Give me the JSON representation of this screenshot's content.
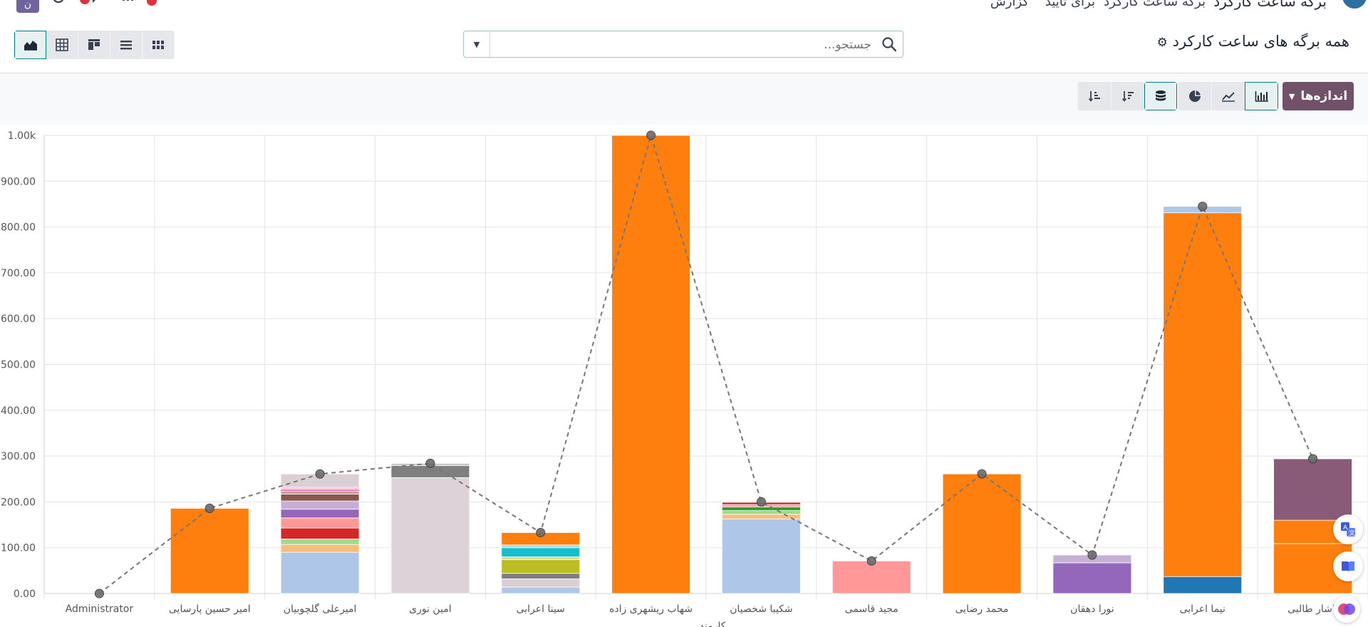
{
  "topbar": {
    "app_title": "برگه ساعت کارکرد",
    "menu": [
      "برگه ساعت کارکرد",
      "برای تایید",
      "گزارش"
    ],
    "avatar_letter": "ن"
  },
  "control_panel": {
    "page_title": "همه برگه های ساعت کارکرد",
    "search_placeholder": "جستجو...",
    "views": [
      "kanban-view-icon",
      "list-view-icon",
      "pivot-layout-icon",
      "table-view-icon",
      "graph-view-icon"
    ],
    "active_view": "graph-view-icon"
  },
  "graph_toolbar": {
    "measures_label": "اندازه‌ها",
    "chart_types": [
      "bar-chart-icon",
      "line-chart-icon",
      "pie-chart-icon"
    ],
    "active_chart_type": "bar-chart-icon",
    "stacked_active": true,
    "sort_buttons": [
      "sort-descending-icon",
      "sort-ascending-icon"
    ]
  },
  "accent_colors": {
    "primary": "#71506a",
    "teal": "#017e84"
  },
  "chart_data": {
    "type": "bar",
    "stacked": true,
    "xlabel": "کارمند",
    "ylim": [
      0,
      1000
    ],
    "yticks": [
      "0.00",
      "100.00",
      "200.00",
      "300.00",
      "400.00",
      "500.00",
      "600.00",
      "700.00",
      "800.00",
      "900.00",
      "1.00k"
    ],
    "categories": [
      "Administrator",
      "امیر حسین پارسایی",
      "امیرعلی گلچوبیان",
      "امین نوری",
      "سینا اعرابی",
      "شهاب ریشهری زاده",
      "شکیبا شخصیان",
      "مجید قاسمی",
      "محمد رضایی",
      "نورا دهقان",
      "نیما اعرابی",
      "یاشار طالبی"
    ],
    "stacks": [
      [],
      [
        {
          "value": 186,
          "color": "#ff7f0e"
        }
      ],
      [
        {
          "value": 90,
          "color": "#aec7e8"
        },
        {
          "value": 17,
          "color": "#ffbb78"
        },
        {
          "value": 12,
          "color": "#98df8a"
        },
        {
          "value": 24,
          "color": "#d62728"
        },
        {
          "value": 22,
          "color": "#ff9896"
        },
        {
          "value": 19,
          "color": "#9467bd"
        },
        {
          "value": 18,
          "color": "#c5b0d5"
        },
        {
          "value": 15,
          "color": "#8c564b"
        },
        {
          "value": 6,
          "color": "#c49c94"
        },
        {
          "value": 5,
          "color": "#e377c2"
        },
        {
          "value": 4,
          "color": "#f7b6d2"
        },
        {
          "value": 29,
          "color": "#dbcfd6"
        }
      ],
      [
        {
          "value": 253,
          "color": "#ded2d9"
        },
        {
          "value": 26,
          "color": "#7f7f7f"
        },
        {
          "value": 5,
          "color": "#c7c7c7"
        }
      ],
      [
        {
          "value": 14,
          "color": "#aec7e8"
        },
        {
          "value": 18,
          "color": "#dbcfd6"
        },
        {
          "value": 12,
          "color": "#7f7f7f"
        },
        {
          "value": 30,
          "color": "#bcbd22"
        },
        {
          "value": 6,
          "color": "#dbdb8d"
        },
        {
          "value": 20,
          "color": "#17becf"
        },
        {
          "value": 6,
          "color": "#9edae5"
        },
        {
          "value": 27,
          "color": "#ff7f0e"
        }
      ],
      [
        {
          "value": 1000,
          "color": "#ff7f0e"
        }
      ],
      [
        {
          "value": 163,
          "color": "#aec7e8"
        },
        {
          "value": 10,
          "color": "#ffbb78"
        },
        {
          "value": 8,
          "color": "#98df8a"
        },
        {
          "value": 8,
          "color": "#2ca02c"
        },
        {
          "value": 5,
          "color": "#ff9896"
        },
        {
          "value": 5,
          "color": "#d62728"
        }
      ],
      [
        {
          "value": 71,
          "color": "#ff9896"
        }
      ],
      [
        {
          "value": 261,
          "color": "#ff7f0e"
        }
      ],
      [
        {
          "value": 67,
          "color": "#9467bd"
        },
        {
          "value": 17,
          "color": "#c5b0d5"
        }
      ],
      [
        {
          "value": 37,
          "color": "#1f77b4"
        },
        {
          "value": 794,
          "color": "#ff7f0e"
        },
        {
          "value": 14,
          "color": "#aec7e8"
        }
      ],
      [
        {
          "value": 109,
          "color": "#ff7f0e"
        },
        {
          "value": 51,
          "color": "#ff7f0e"
        },
        {
          "value": 134,
          "color": "#8a5a79"
        }
      ]
    ],
    "line_series": [
      0,
      186,
      261,
      284,
      133,
      1000,
      200,
      71,
      261,
      84,
      845,
      294
    ],
    "grid": true
  }
}
